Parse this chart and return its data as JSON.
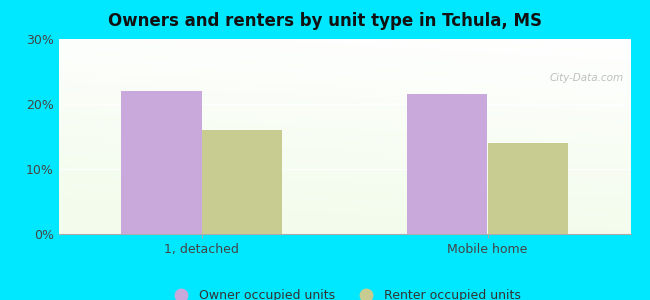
{
  "title": "Owners and renters by unit type in Tchula, MS",
  "categories": [
    "1, detached",
    "Mobile home"
  ],
  "owner_values": [
    22.0,
    21.5
  ],
  "renter_values": [
    16.0,
    14.0
  ],
  "owner_color": "#c9a8dc",
  "renter_color": "#c8cc90",
  "ylim": [
    0,
    30
  ],
  "yticks": [
    0,
    10,
    20,
    30
  ],
  "ytick_labels": [
    "0%",
    "10%",
    "20%",
    "30%"
  ],
  "legend_owner": "Owner occupied units",
  "legend_renter": "Renter occupied units",
  "bg_outer": "#00e8ff",
  "bar_width": 0.28,
  "watermark": "City-Data.com"
}
